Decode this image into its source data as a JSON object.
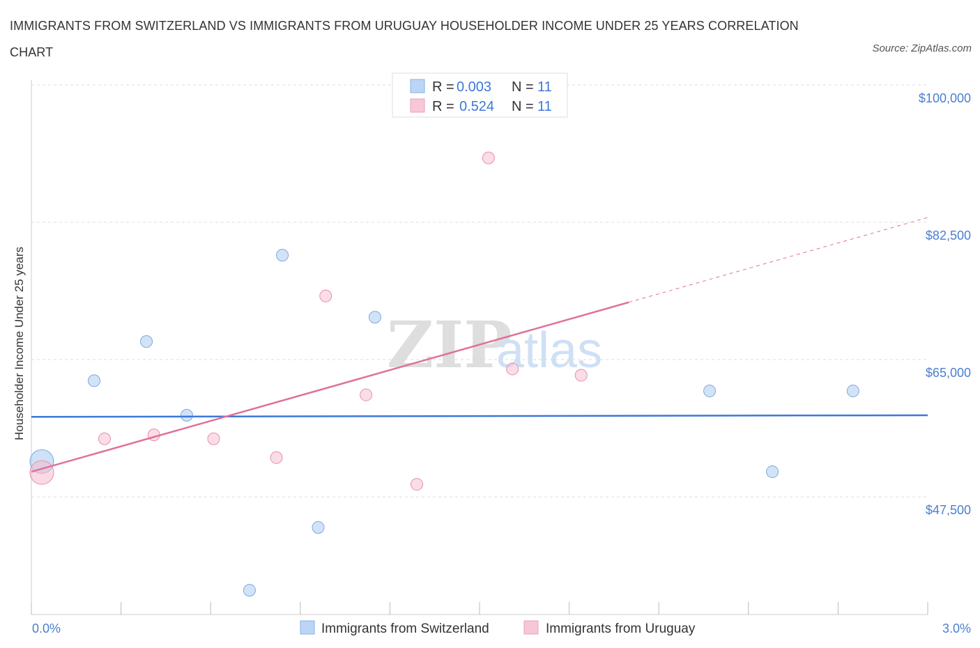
{
  "title": "IMMIGRANTS FROM SWITZERLAND VS IMMIGRANTS FROM URUGUAY HOUSEHOLDER INCOME UNDER 25 YEARS CORRELATION CHART",
  "source": "Source: ZipAtlas.com",
  "chart_data": {
    "type": "scatter",
    "ylabel": "Householder Income Under 25 years",
    "xlim": [
      0,
      3.0
    ],
    "ylim": [
      32500,
      101500
    ],
    "x_ticks": [
      "0.0%",
      "3.0%"
    ],
    "y_ticks": [
      {
        "value": 100000,
        "label": "$100,000"
      },
      {
        "value": 82500,
        "label": "$82,500"
      },
      {
        "value": 65000,
        "label": "$65,000"
      },
      {
        "value": 47500,
        "label": "$47,500"
      }
    ],
    "grid": true,
    "legend": {
      "entries": [
        {
          "r_label": "R =",
          "r_value": "0.003",
          "n_label": "N =",
          "n_value": "11"
        },
        {
          "r_label": "R =",
          "r_value": "0.524",
          "n_label": "N =",
          "n_value": "11"
        }
      ]
    },
    "series": [
      {
        "name": "Immigrants from Switzerland",
        "color": "#a8c8f0",
        "stroke": "#7aa8e0",
        "line_color": "#3c78d8",
        "points": [
          {
            "x": 0.035,
            "y": 52000,
            "big": true
          },
          {
            "x": 0.21,
            "y": 62300
          },
          {
            "x": 0.385,
            "y": 67300
          },
          {
            "x": 0.52,
            "y": 57900
          },
          {
            "x": 0.84,
            "y": 78300
          },
          {
            "x": 0.96,
            "y": 43600
          },
          {
            "x": 1.15,
            "y": 70400
          },
          {
            "x": 0.73,
            "y": 35600
          },
          {
            "x": 2.27,
            "y": 61000
          },
          {
            "x": 2.48,
            "y": 50700
          },
          {
            "x": 2.75,
            "y": 61000
          }
        ],
        "trend": {
          "x1": 0.0,
          "y1": 57700,
          "x2": 3.0,
          "y2": 57900,
          "dashed_from": null
        }
      },
      {
        "name": "Immigrants from Uruguay",
        "color": "#f6bccd",
        "stroke": "#e890aa",
        "line_color": "#e07096",
        "points": [
          {
            "x": 0.035,
            "y": 50600,
            "big": true
          },
          {
            "x": 0.245,
            "y": 54900
          },
          {
            "x": 0.41,
            "y": 55400
          },
          {
            "x": 0.61,
            "y": 54900
          },
          {
            "x": 0.82,
            "y": 52500
          },
          {
            "x": 0.985,
            "y": 73100
          },
          {
            "x": 1.12,
            "y": 60500
          },
          {
            "x": 1.29,
            "y": 49100
          },
          {
            "x": 1.53,
            "y": 90700
          },
          {
            "x": 1.61,
            "y": 63800
          },
          {
            "x": 1.84,
            "y": 63000
          }
        ],
        "trend": {
          "x1": 0.0,
          "y1": 50700,
          "x2": 3.0,
          "y2": 83100,
          "dashed_from": 2.0
        }
      }
    ]
  },
  "watermark": {
    "zip": "ZIP",
    "atlas": "atlas"
  }
}
